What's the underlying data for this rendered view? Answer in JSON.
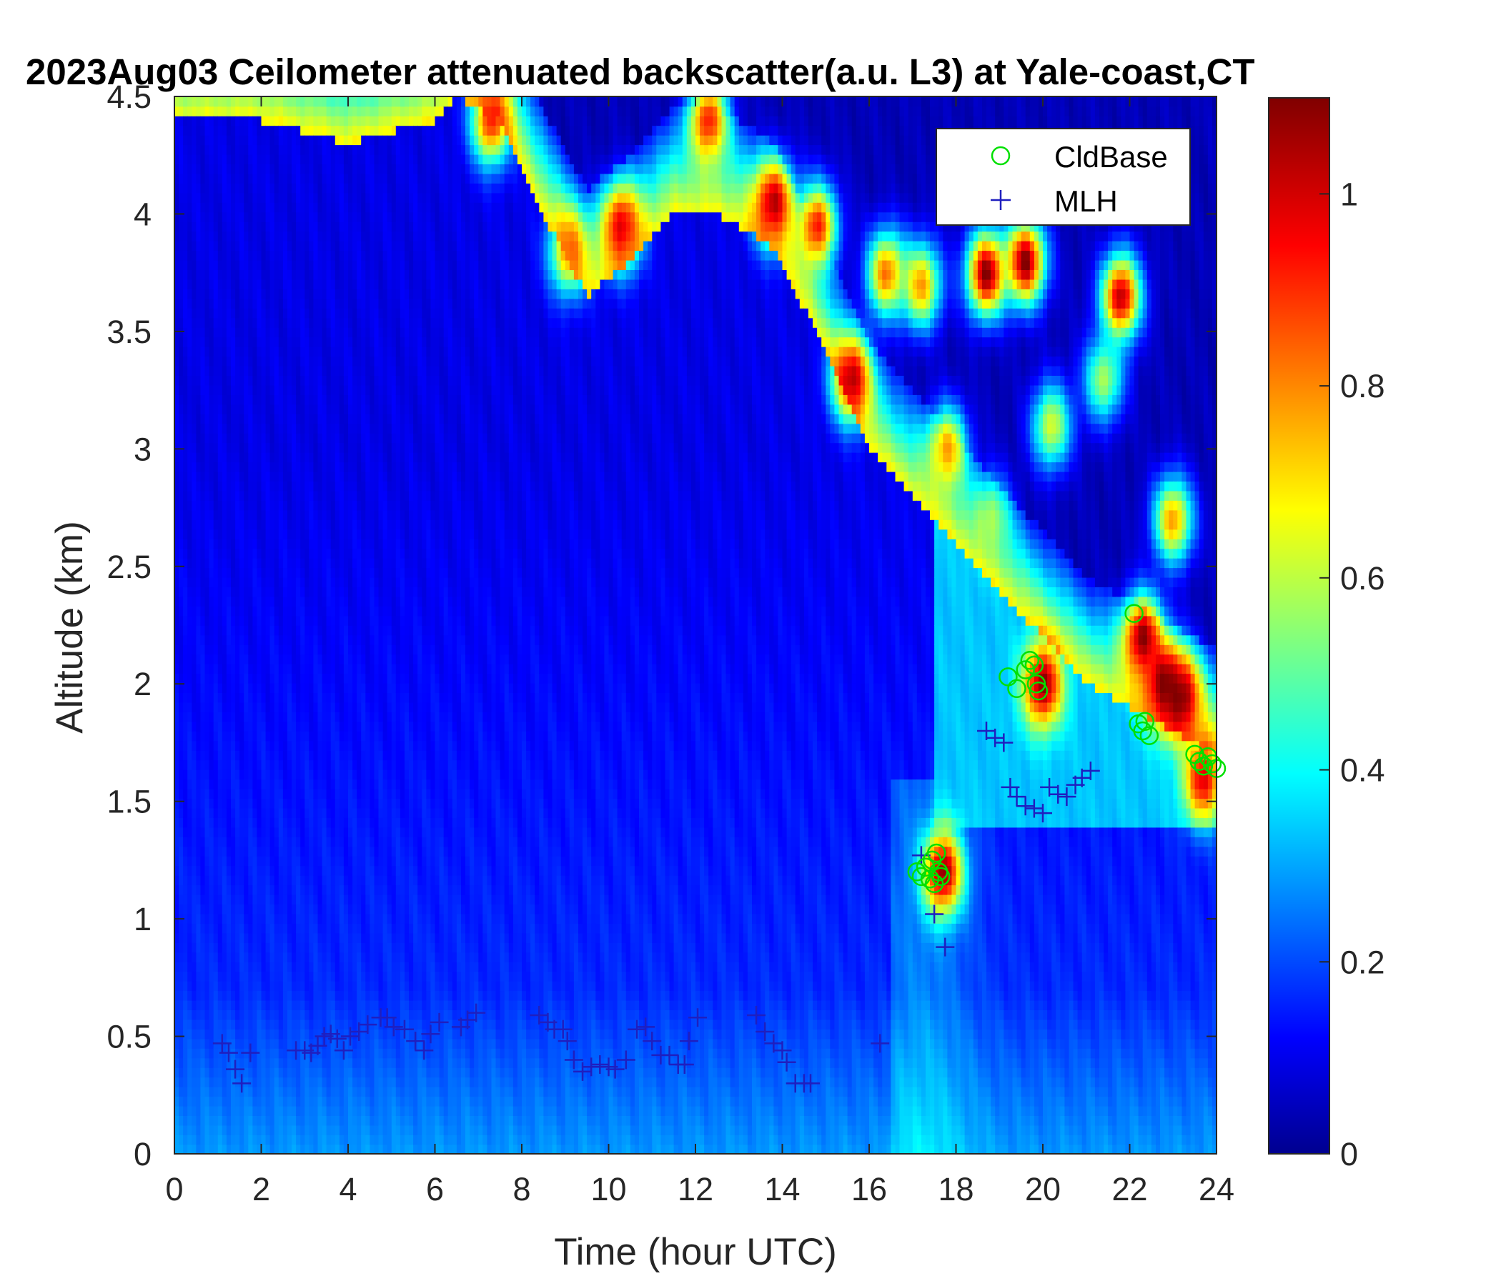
{
  "chart_data": {
    "type": "heatmap",
    "title": "2023Aug03 Ceilometer attenuated backscatter(a.u. L3) at Yale-coast,CT",
    "xlabel": "Time (hour UTC)",
    "ylabel": "Altitude (km)",
    "xlim": [
      0,
      24
    ],
    "ylim": [
      0,
      4.5
    ],
    "xticks": [
      "0",
      "2",
      "4",
      "6",
      "8",
      "10",
      "12",
      "14",
      "16",
      "18",
      "20",
      "22",
      "24"
    ],
    "yticks": [
      "0",
      "0.5",
      "1",
      "1.5",
      "2",
      "2.5",
      "3",
      "3.5",
      "4",
      "4.5"
    ],
    "colorbar": {
      "colormap": "jet",
      "range": [
        0,
        1.1
      ],
      "ticks": [
        "0",
        "0.2",
        "0.4",
        "0.6",
        "0.8",
        "1"
      ]
    },
    "legend": {
      "position": "top-right",
      "entries": [
        {
          "label": "CldBase",
          "marker": "circle",
          "color": "#00e000"
        },
        {
          "label": "MLH",
          "marker": "plus",
          "color": "#1f1fbf"
        }
      ]
    },
    "aerosol_layer_top_km": [
      [
        0,
        4.4
      ],
      [
        2,
        4.4
      ],
      [
        4,
        4.3
      ],
      [
        6,
        4.4
      ],
      [
        6.5,
        4.5
      ],
      [
        7.5,
        4.4
      ],
      [
        8.5,
        4.0
      ],
      [
        9.5,
        3.65
      ],
      [
        10.5,
        3.8
      ],
      [
        11.5,
        4.0
      ],
      [
        12.5,
        4.0
      ],
      [
        13.5,
        3.9
      ],
      [
        14,
        3.8
      ],
      [
        15,
        3.4
      ],
      [
        16,
        3.0
      ],
      [
        17,
        2.8
      ],
      [
        18,
        2.6
      ],
      [
        19,
        2.4
      ],
      [
        20,
        2.2
      ],
      [
        21,
        2.0
      ],
      [
        22,
        1.9
      ],
      [
        23,
        1.8
      ],
      [
        24,
        1.7
      ]
    ],
    "hotspots": [
      {
        "t": 7.3,
        "z": 4.4,
        "v": 0.95
      },
      {
        "t": 9.1,
        "z": 3.85,
        "v": 0.85
      },
      {
        "t": 10.3,
        "z": 3.95,
        "v": 1.0
      },
      {
        "t": 12.3,
        "z": 4.4,
        "v": 0.95
      },
      {
        "t": 13.8,
        "z": 4.05,
        "v": 1.05
      },
      {
        "t": 14.8,
        "z": 3.95,
        "v": 0.95
      },
      {
        "t": 15.6,
        "z": 3.3,
        "v": 1.05
      },
      {
        "t": 16.4,
        "z": 3.75,
        "v": 0.85
      },
      {
        "t": 17.2,
        "z": 3.7,
        "v": 0.8
      },
      {
        "t": 17.8,
        "z": 3.0,
        "v": 0.8
      },
      {
        "t": 18.7,
        "z": 3.75,
        "v": 1.1
      },
      {
        "t": 19.6,
        "z": 3.8,
        "v": 1.1
      },
      {
        "t": 21.8,
        "z": 3.65,
        "v": 1.05
      },
      {
        "t": 20.0,
        "z": 2.0,
        "v": 1.1
      },
      {
        "t": 22.3,
        "z": 2.2,
        "v": 1.1
      },
      {
        "t": 22.8,
        "z": 2.0,
        "v": 1.1
      },
      {
        "t": 23.2,
        "z": 1.95,
        "v": 1.1
      },
      {
        "t": 23.7,
        "z": 1.6,
        "v": 1.0
      },
      {
        "t": 17.7,
        "z": 1.2,
        "v": 1.1
      },
      {
        "t": 18.8,
        "z": 2.7,
        "v": 0.6
      },
      {
        "t": 20.2,
        "z": 3.1,
        "v": 0.65
      },
      {
        "t": 21.4,
        "z": 3.3,
        "v": 0.6
      },
      {
        "t": 23.0,
        "z": 2.7,
        "v": 0.8
      }
    ],
    "series": [
      {
        "name": "CldBase",
        "points": [
          [
            17.1,
            1.2
          ],
          [
            17.2,
            1.18
          ],
          [
            17.3,
            1.22
          ],
          [
            17.4,
            1.17
          ],
          [
            17.45,
            1.25
          ],
          [
            17.5,
            1.15
          ],
          [
            17.55,
            1.28
          ],
          [
            17.6,
            1.2
          ],
          [
            17.65,
            1.18
          ],
          [
            19.2,
            2.03
          ],
          [
            19.4,
            1.98
          ],
          [
            19.6,
            2.06
          ],
          [
            19.7,
            2.1
          ],
          [
            19.8,
            2.08
          ],
          [
            19.85,
            2.0
          ],
          [
            19.9,
            1.97
          ],
          [
            22.1,
            2.3
          ],
          [
            22.2,
            1.83
          ],
          [
            22.3,
            1.8
          ],
          [
            22.35,
            1.84
          ],
          [
            22.45,
            1.78
          ],
          [
            23.5,
            1.7
          ],
          [
            23.6,
            1.67
          ],
          [
            23.7,
            1.65
          ],
          [
            23.8,
            1.69
          ],
          [
            23.9,
            1.66
          ],
          [
            24.0,
            1.64
          ]
        ]
      },
      {
        "name": "MLH",
        "points": [
          [
            1.1,
            0.47
          ],
          [
            1.25,
            0.43
          ],
          [
            1.4,
            0.36
          ],
          [
            1.55,
            0.3
          ],
          [
            1.75,
            0.43
          ],
          [
            2.8,
            0.44
          ],
          [
            3.0,
            0.44
          ],
          [
            3.15,
            0.43
          ],
          [
            3.3,
            0.46
          ],
          [
            3.45,
            0.5
          ],
          [
            3.6,
            0.51
          ],
          [
            3.75,
            0.49
          ],
          [
            3.9,
            0.44
          ],
          [
            4.05,
            0.5
          ],
          [
            4.25,
            0.52
          ],
          [
            4.45,
            0.55
          ],
          [
            4.75,
            0.58
          ],
          [
            4.9,
            0.58
          ],
          [
            5.05,
            0.54
          ],
          [
            5.3,
            0.53
          ],
          [
            5.55,
            0.48
          ],
          [
            5.75,
            0.44
          ],
          [
            5.9,
            0.51
          ],
          [
            6.1,
            0.56
          ],
          [
            6.6,
            0.54
          ],
          [
            6.75,
            0.57
          ],
          [
            6.95,
            0.6
          ],
          [
            8.4,
            0.59
          ],
          [
            8.6,
            0.56
          ],
          [
            8.75,
            0.53
          ],
          [
            8.95,
            0.53
          ],
          [
            9.05,
            0.48
          ],
          [
            9.2,
            0.4
          ],
          [
            9.4,
            0.35
          ],
          [
            9.6,
            0.37
          ],
          [
            9.8,
            0.38
          ],
          [
            10.0,
            0.37
          ],
          [
            10.15,
            0.36
          ],
          [
            10.4,
            0.4
          ],
          [
            10.65,
            0.53
          ],
          [
            10.85,
            0.54
          ],
          [
            11.0,
            0.48
          ],
          [
            11.2,
            0.42
          ],
          [
            11.4,
            0.42
          ],
          [
            11.6,
            0.38
          ],
          [
            11.75,
            0.38
          ],
          [
            11.85,
            0.48
          ],
          [
            12.05,
            0.58
          ],
          [
            13.4,
            0.59
          ],
          [
            13.6,
            0.52
          ],
          [
            13.8,
            0.47
          ],
          [
            14.0,
            0.44
          ],
          [
            14.1,
            0.39
          ],
          [
            14.3,
            0.3
          ],
          [
            14.5,
            0.3
          ],
          [
            14.65,
            0.3
          ],
          [
            16.25,
            0.47
          ],
          [
            17.2,
            1.27
          ],
          [
            17.5,
            1.02
          ],
          [
            17.75,
            0.88
          ],
          [
            18.7,
            1.8
          ],
          [
            18.9,
            1.77
          ],
          [
            19.1,
            1.75
          ],
          [
            19.25,
            1.56
          ],
          [
            19.4,
            1.52
          ],
          [
            19.6,
            1.48
          ],
          [
            19.8,
            1.47
          ],
          [
            20.0,
            1.45
          ],
          [
            20.15,
            1.56
          ],
          [
            20.35,
            1.53
          ],
          [
            20.55,
            1.52
          ],
          [
            20.75,
            1.57
          ],
          [
            20.9,
            1.6
          ],
          [
            21.1,
            1.63
          ]
        ]
      }
    ]
  }
}
